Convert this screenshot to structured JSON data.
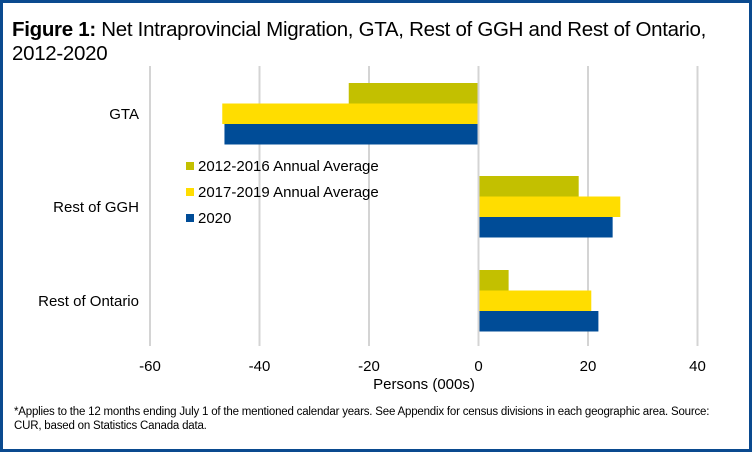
{
  "figure": {
    "title_prefix": "Figure 1:",
    "title_text": " Net Intraprovincial Migration, GTA, Rest of GGH and Rest of Ontario, 2012-2020",
    "note": "*Applies to the 12 months ending July 1 of the mentioned calendar years. See Appendix for census divisions in each geographic area. Source: CUR, based on Statistics Canada data.",
    "border_color": "#0a4a8f"
  },
  "chart_data": {
    "type": "bar",
    "orientation": "horizontal",
    "title": "Figure 1: Net Intraprovincial Migration, GTA, Rest of GGH and Rest of Ontario, 2012-2020",
    "categories": [
      "GTA",
      "Rest of GGH",
      "Rest of Ontario"
    ],
    "series": [
      {
        "name": "2012-2016 Annual Average",
        "color": "#c3c000",
        "values": [
          -23.7,
          18.3,
          5.5
        ]
      },
      {
        "name": "2017-2019 Annual Average",
        "color": "#ffdd00",
        "values": [
          -46.8,
          25.9,
          20.6
        ]
      },
      {
        "name": "2020",
        "color": "#004c97",
        "values": [
          -46.4,
          24.5,
          21.9
        ]
      }
    ],
    "xlabel": "Persons (000s)",
    "ylabel": "",
    "xlim": [
      -60,
      40
    ],
    "xticks": [
      -60,
      -40,
      -20,
      0,
      20,
      40
    ],
    "xtick_labels": [
      "-60",
      "-40",
      "-20",
      "0",
      "20",
      "40"
    ],
    "grid": true,
    "legend_position": "center-left"
  }
}
